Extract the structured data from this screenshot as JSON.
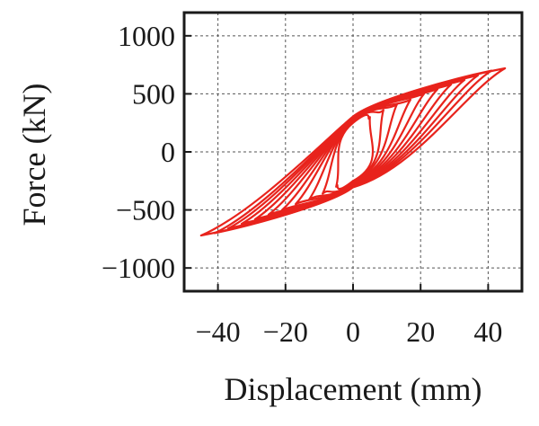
{
  "chart_data": {
    "type": "line",
    "title": "",
    "xlabel": "Displacement (mm)",
    "ylabel": "Force (kN)",
    "xlim": [
      -50,
      50
    ],
    "ylim": [
      -1200,
      1200
    ],
    "xticks": [
      -40,
      -20,
      0,
      20,
      40
    ],
    "yticks": [
      1000,
      500,
      0,
      -500,
      -1000
    ],
    "xtick_labels": [
      "−40",
      "−20",
      "0",
      "20",
      "40"
    ],
    "ytick_labels": [
      "1000",
      "500",
      "0",
      "−500",
      "−1000"
    ],
    "grid": true,
    "legend": "none",
    "series_color": "#e8231c",
    "series": [
      {
        "amplitude_mm": 5,
        "peak_force_kN": 300,
        "zero_force_kN": 250,
        "zero_disp_mm": 3
      },
      {
        "amplitude_mm": 9,
        "peak_force_kN": 360,
        "zero_force_kN": 260,
        "zero_disp_mm": 3.5
      },
      {
        "amplitude_mm": 13,
        "peak_force_kN": 410,
        "zero_force_kN": 265,
        "zero_disp_mm": 4
      },
      {
        "amplitude_mm": 17,
        "peak_force_kN": 450,
        "zero_force_kN": 270,
        "zero_disp_mm": 5
      },
      {
        "amplitude_mm": 21,
        "peak_force_kN": 500,
        "zero_force_kN": 275,
        "zero_disp_mm": 6
      },
      {
        "amplitude_mm": 25,
        "peak_force_kN": 540,
        "zero_force_kN": 280,
        "zero_disp_mm": 7
      },
      {
        "amplitude_mm": 29,
        "peak_force_kN": 580,
        "zero_force_kN": 285,
        "zero_disp_mm": 8
      },
      {
        "amplitude_mm": 33,
        "peak_force_kN": 620,
        "zero_force_kN": 290,
        "zero_disp_mm": 9
      },
      {
        "amplitude_mm": 37,
        "peak_force_kN": 660,
        "zero_force_kN": 295,
        "zero_disp_mm": 10
      },
      {
        "amplitude_mm": 41,
        "peak_force_kN": 700,
        "zero_force_kN": 300,
        "zero_disp_mm": 11
      },
      {
        "amplitude_mm": 45,
        "peak_force_kN": 720,
        "zero_force_kN": 305,
        "zero_disp_mm": 12
      }
    ]
  }
}
